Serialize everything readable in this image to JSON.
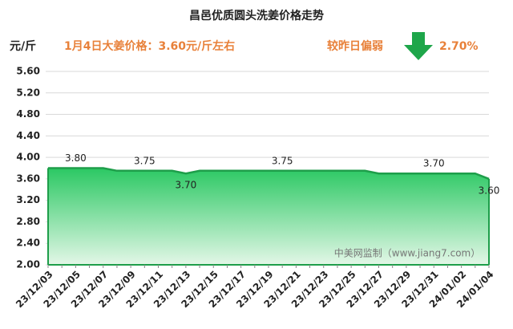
{
  "chart_data": {
    "type": "area",
    "title": "昌邑优质圆头洗姜价格走势",
    "y_unit": "元/斤",
    "headline": "1月4日大姜价格：3.60元/斤左右",
    "change_text": "较昨日偏弱",
    "change_value": "2.70%",
    "watermark": "中美网监制（www.jiang7.com）",
    "categories": [
      "23/12/03",
      null,
      "23/12/05",
      null,
      "23/12/07",
      null,
      "23/12/09",
      null,
      "23/12/11",
      null,
      "23/12/13",
      null,
      "23/12/15",
      null,
      "23/12/17",
      null,
      "23/12/19",
      null,
      "23/12/21",
      null,
      "23/12/23",
      null,
      "23/12/25",
      null,
      "23/12/27",
      null,
      "23/12/29",
      null,
      "23/12/31",
      null,
      "24/01/02",
      null,
      "24/01/04"
    ],
    "values": [
      3.8,
      3.8,
      3.8,
      3.8,
      3.8,
      3.75,
      3.75,
      3.75,
      3.75,
      3.75,
      3.7,
      3.75,
      3.75,
      3.75,
      3.75,
      3.75,
      3.75,
      3.75,
      3.75,
      3.75,
      3.75,
      3.75,
      3.75,
      3.75,
      3.7,
      3.7,
      3.7,
      3.7,
      3.7,
      3.7,
      3.7,
      3.7,
      3.6
    ],
    "value_labels": [
      null,
      null,
      "3.80",
      null,
      null,
      null,
      null,
      "3.75",
      null,
      null,
      "3.70",
      null,
      null,
      null,
      null,
      null,
      null,
      "3.75",
      null,
      null,
      null,
      null,
      null,
      null,
      null,
      null,
      null,
      null,
      "3.70",
      null,
      null,
      null,
      "3.60"
    ],
    "color": "#1e9e4a",
    "ylim": [
      2.0,
      5.6
    ],
    "yticks": [
      {
        "value": 2.0,
        "label": "2.00"
      },
      {
        "value": 2.4,
        "label": "2.40"
      },
      {
        "value": 2.8,
        "label": "2.80"
      },
      {
        "value": 3.2,
        "label": "3.20"
      },
      {
        "value": 3.6,
        "label": "3.60"
      },
      {
        "value": 4.0,
        "label": "4.00"
      },
      {
        "value": 4.4,
        "label": "4.40"
      },
      {
        "value": 4.8,
        "label": "4.80"
      },
      {
        "value": 5.2,
        "label": "5.20"
      },
      {
        "value": 5.6,
        "label": "5.60"
      }
    ],
    "grid": true
  }
}
